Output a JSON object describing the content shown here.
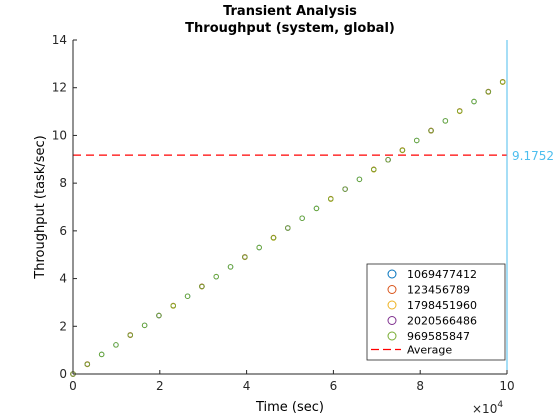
{
  "chart_data": {
    "type": "scatter",
    "title": "Transient Analysis",
    "subtitle": "Throughput (system, global)",
    "xlabel": "Time (sec)",
    "ylabel": "Throughput (task/sec)",
    "x_exponent_label": "×10",
    "x_exponent_power": "4",
    "xlim": [
      0,
      100000
    ],
    "ylim": [
      0,
      14
    ],
    "x_ticks": [
      0,
      20000,
      40000,
      60000,
      80000,
      100000
    ],
    "x_tick_labels": [
      "0",
      "2",
      "4",
      "6",
      "8",
      "10"
    ],
    "y_ticks": [
      0,
      2,
      4,
      6,
      8,
      10,
      12,
      14
    ],
    "y_tick_labels": [
      "0",
      "2",
      "4",
      "6",
      "8",
      "10",
      "12",
      "14"
    ],
    "legend_position": "bottom-right",
    "series": [
      {
        "name": "1069477412",
        "color": "#0072BD",
        "x": [
          0,
          3300,
          6600,
          9900,
          13200,
          16500,
          19800,
          23100,
          26400,
          29700,
          33000,
          36300,
          39600,
          42900,
          46200,
          49500,
          52800,
          56100,
          59400,
          62700,
          66000,
          69300,
          72600,
          75900,
          79200,
          82500,
          85800,
          89100,
          92400,
          95700,
          99000
        ],
        "y": [
          0.0,
          0.41,
          0.82,
          1.22,
          1.63,
          2.04,
          2.45,
          2.86,
          3.26,
          3.67,
          4.08,
          4.49,
          4.9,
          5.3,
          5.71,
          6.12,
          6.53,
          6.94,
          7.34,
          7.75,
          8.16,
          8.57,
          8.98,
          9.38,
          9.79,
          10.2,
          10.61,
          11.02,
          11.42,
          11.83,
          12.24
        ]
      },
      {
        "name": "123456789",
        "color": "#D95319",
        "x": [
          0,
          3300,
          13200,
          23100,
          29700,
          39600,
          46200,
          59400,
          69300,
          75900,
          82500,
          89100,
          95700,
          99000
        ],
        "y": [
          0.0,
          0.42,
          1.64,
          2.87,
          3.68,
          4.91,
          5.72,
          7.35,
          8.58,
          9.39,
          10.21,
          11.03,
          11.84,
          12.25
        ]
      },
      {
        "name": "1798451960",
        "color": "#EDB120",
        "x": [
          0,
          3300,
          13200,
          23100,
          29700,
          39600,
          46200,
          59400,
          69300,
          75900,
          82500,
          89100,
          95700,
          99000
        ],
        "y": [
          0.0,
          0.4,
          1.62,
          2.85,
          3.66,
          4.89,
          5.7,
          7.33,
          8.56,
          9.37,
          10.19,
          11.01,
          11.82,
          12.23
        ]
      },
      {
        "name": "2020566486",
        "color": "#7E2F8E",
        "x": [
          0,
          3300,
          13200,
          19800,
          29700,
          39600,
          49500,
          62700,
          72600,
          82500,
          95700
        ],
        "y": [
          0.0,
          0.41,
          1.63,
          2.45,
          3.67,
          4.9,
          6.12,
          7.75,
          8.98,
          10.2,
          11.83
        ]
      },
      {
        "name": "969585847",
        "color": "#77AC30",
        "x": [
          0,
          3300,
          6600,
          9900,
          13200,
          16500,
          19800,
          23100,
          26400,
          29700,
          33000,
          36300,
          39600,
          42900,
          46200,
          49500,
          52800,
          56100,
          59400,
          62700,
          66000,
          69300,
          72600,
          75900,
          79200,
          82500,
          85800,
          89100,
          92400,
          95700,
          99000
        ],
        "y": [
          0.0,
          0.41,
          0.82,
          1.22,
          1.63,
          2.04,
          2.45,
          2.86,
          3.26,
          3.67,
          4.08,
          4.49,
          4.9,
          5.3,
          5.71,
          6.12,
          6.53,
          6.94,
          7.34,
          7.75,
          8.16,
          8.57,
          8.98,
          9.38,
          9.79,
          10.2,
          10.61,
          11.02,
          11.42,
          11.83,
          12.24
        ]
      }
    ],
    "average": {
      "name": "Average",
      "value": 9.1752,
      "label": "9.1752",
      "color": "#FF0000"
    },
    "annotation_line_color": "#4DBEEE"
  }
}
